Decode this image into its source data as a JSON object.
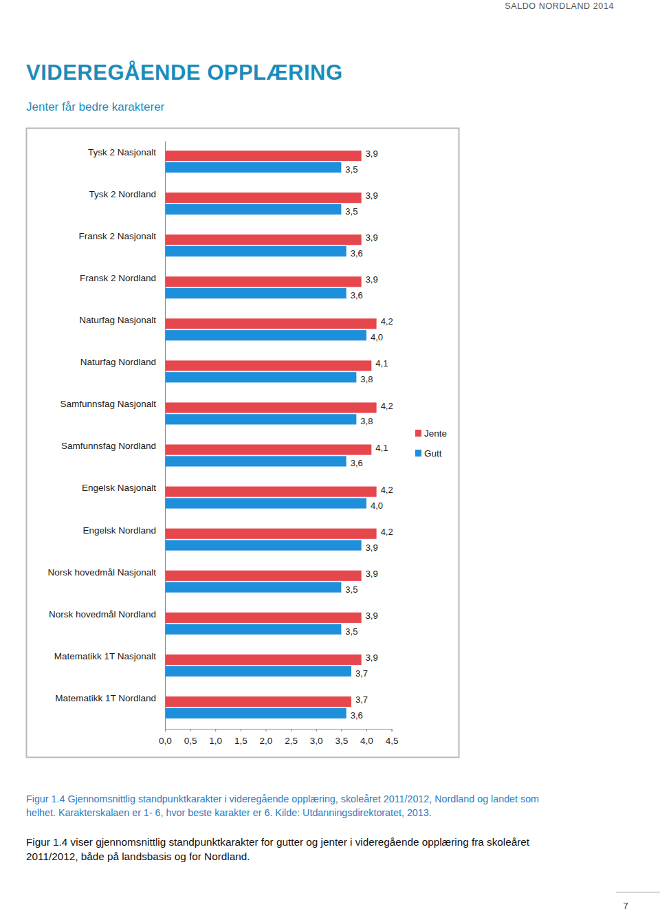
{
  "header": "SALDO NORDLAND 2014",
  "title": "VIDEREGÅENDE OPPLÆRING",
  "subtitle": "Jenter får bedre karakterer",
  "chart_data": {
    "type": "bar",
    "orientation": "horizontal",
    "categories": [
      "Tysk 2 Nasjonalt",
      "Tysk 2 Nordland",
      "Fransk 2 Nasjonalt",
      "Fransk 2 Nordland",
      "Naturfag Nasjonalt",
      "Naturfag Nordland",
      "Samfunnsfag Nasjonalt",
      "Samfunnsfag Nordland",
      "Engelsk Nasjonalt",
      "Engelsk Nordland",
      "Norsk hovedmål Nasjonalt",
      "Norsk hovedmål Nordland",
      "Matematikk 1T Nasjonalt",
      "Matematikk 1T Nordland"
    ],
    "series": [
      {
        "name": "Jente",
        "color": "#e5474d",
        "values": [
          3.9,
          3.9,
          3.9,
          3.9,
          4.2,
          4.1,
          4.2,
          4.1,
          4.2,
          4.2,
          3.9,
          3.9,
          3.9,
          3.7
        ],
        "value_labels": [
          "3,9",
          "3,9",
          "3,9",
          "3,9",
          "4,2",
          "4,1",
          "4,2",
          "4,1",
          "4,2",
          "4,2",
          "3,9",
          "3,9",
          "3,9",
          "3,7"
        ]
      },
      {
        "name": "Gutt",
        "color": "#1d8fdb",
        "values": [
          3.5,
          3.5,
          3.6,
          3.6,
          4.0,
          3.8,
          3.8,
          3.6,
          4.0,
          3.9,
          3.5,
          3.5,
          3.7,
          3.6
        ],
        "value_labels": [
          "3,5",
          "3,5",
          "3,6",
          "3,6",
          "4,0",
          "3,8",
          "3,8",
          "3,6",
          "4,0",
          "3,9",
          "3,5",
          "3,5",
          "3,7",
          "3,6"
        ]
      }
    ],
    "xlim": [
      0,
      4.5
    ],
    "xticks": [
      {
        "value": 0,
        "label": "0,0"
      },
      {
        "value": 0.5,
        "label": "0,5"
      },
      {
        "value": 1,
        "label": "1,0"
      },
      {
        "value": 1.5,
        "label": "1,5"
      },
      {
        "value": 2,
        "label": "2,0"
      },
      {
        "value": 2.5,
        "label": "2,5"
      },
      {
        "value": 3,
        "label": "3,0"
      },
      {
        "value": 3.5,
        "label": "3,5"
      },
      {
        "value": 4,
        "label": "4,0"
      },
      {
        "value": 4.5,
        "label": "4,5"
      }
    ],
    "data_labels": true,
    "legend": "right",
    "grid": false
  },
  "caption": [
    "Figur 1.4 Gjennomsnittlig standpunktkarakter i videregående opplæring, skoleåret 2011/2012, Nordland og landet som",
    "helhet. Karakterskalaen er 1- 6, hvor beste karakter er 6. Kilde: Utdanningsdirektoratet, 2013."
  ],
  "body": [
    "Figur 1.4 viser gjennomsnittlig standpunktkarakter for gutter og jenter i videregående opplæring fra skoleåret",
    "2011/2012, både på landsbasis og for Nordland."
  ],
  "page_number": 7
}
